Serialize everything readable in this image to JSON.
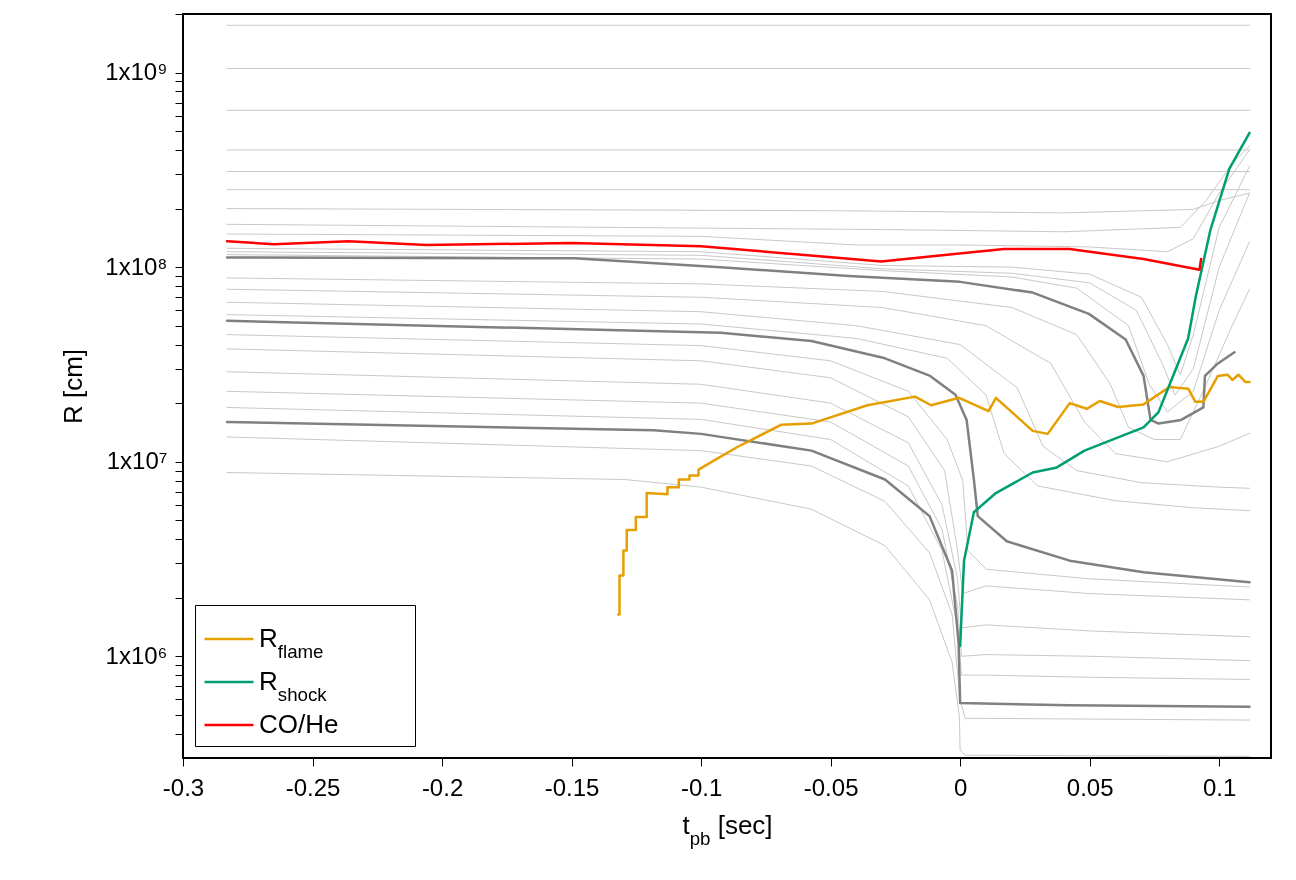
{
  "chart_data": {
    "type": "line",
    "xlabel": "t$_{pb}$ [sec]",
    "ylabel": "R [cm]",
    "log": "y",
    "grid": false,
    "legend": "bottom left",
    "xlim": [
      -0.3,
      0.12
    ],
    "xticks": [
      -0.3,
      -0.25,
      -0.2,
      -0.15,
      -0.1,
      -0.05,
      0,
      0.05,
      0.1
    ],
    "ylim": [
      300000.0,
      2000000000.0
    ],
    "yticks": [
      {
        "value": 400000.0,
        "label": null
      },
      {
        "value": 500000.0,
        "label": null
      },
      {
        "value": 600000.0,
        "label": null
      },
      {
        "value": 700000.0,
        "label": null
      },
      {
        "value": 800000.0,
        "label": null
      },
      {
        "value": 900000.0,
        "label": null
      },
      {
        "value": 1000000.0,
        "label": "1x10⁶"
      },
      {
        "value": 2000000.0,
        "label": null
      },
      {
        "value": 3000000.0,
        "label": null
      },
      {
        "value": 4000000.0,
        "label": null
      },
      {
        "value": 5000000.0,
        "label": null
      },
      {
        "value": 6000000.0,
        "label": null
      },
      {
        "value": 7000000.0,
        "label": null
      },
      {
        "value": 8000000.0,
        "label": null
      },
      {
        "value": 9000000.0,
        "label": null
      },
      {
        "value": 10000000.0,
        "label": "1x10⁷"
      },
      {
        "value": 20000000.0,
        "label": null
      },
      {
        "value": 30000000.0,
        "label": null
      },
      {
        "value": 40000000.0,
        "label": null
      },
      {
        "value": 50000000.0,
        "label": null
      },
      {
        "value": 60000000.0,
        "label": null
      },
      {
        "value": 70000000.0,
        "label": null
      },
      {
        "value": 80000000.0,
        "label": null
      },
      {
        "value": 90000000.0,
        "label": null
      },
      {
        "value": 100000000.0,
        "label": "1x10⁸"
      },
      {
        "value": 200000000.0,
        "label": null
      },
      {
        "value": 300000000.0,
        "label": null
      },
      {
        "value": 400000000.0,
        "label": null
      },
      {
        "value": 500000000.0,
        "label": null
      },
      {
        "value": 600000000.0,
        "label": null
      },
      {
        "value": 700000000.0,
        "label": null
      },
      {
        "value": 800000000.0,
        "label": null
      },
      {
        "value": 900000000.0,
        "label": null
      },
      {
        "value": 1000000000.0,
        "label": "1x10⁹"
      },
      {
        "value": 2000000000.0,
        "label": null
      }
    ],
    "series": [
      {
        "color": "#c8c8c8",
        "x": [
          -0.283,
          0.1117
        ],
        "values": [
          1750000000.0,
          1750000000.0
        ]
      },
      {
        "color": "#c8c8c8",
        "x": [
          -0.283,
          0.1117
        ],
        "values": [
          1050000000.0,
          1050000000.0
        ]
      },
      {
        "color": "#c8c8c8",
        "x": [
          -0.283,
          0.1117
        ],
        "values": [
          640000000.0,
          640000000.0
        ]
      },
      {
        "color": "#c8c8c8",
        "x": [
          -0.283,
          0.1117
        ],
        "values": [
          400000000.0,
          400000000.0
        ]
      },
      {
        "color": "#c8c8c8",
        "x": [
          -0.283,
          0.1117
        ],
        "values": [
          310000000.0,
          310000000.0
        ]
      },
      {
        "color": "#c8c8c8",
        "x": [
          -0.283,
          0.1117
        ],
        "values": [
          250000000.0,
          250000000.0
        ]
      },
      {
        "color": "#c8c8c8",
        "x": [
          -0.283,
          -0.05,
          0.04,
          0.09,
          0.1,
          0.1117
        ],
        "values": [
          200000000.0,
          195000000.0,
          190000000.0,
          198000000.0,
          220000000.0,
          240000000.0
        ]
      },
      {
        "color": "#c8c8c8",
        "x": [
          -0.283,
          -0.03,
          0.04,
          0.085,
          0.095,
          0.105,
          0.1117
        ],
        "values": [
          166000000.0,
          156000000.0,
          152000000.0,
          160000000.0,
          220000000.0,
          340000000.0,
          420000000.0
        ]
      },
      {
        "color": "#c8c8c8",
        "x": [
          -0.283,
          -0.1,
          -0.04,
          0,
          0.05,
          0.08,
          0.09,
          0.1,
          0.1117
        ],
        "values": [
          148000000.0,
          144000000.0,
          130000000.0,
          130000000.0,
          127000000.0,
          120000000.0,
          140000000.0,
          240000000.0,
          400000000.0
        ]
      },
      {
        "color": "#c8c8c8",
        "x": [
          -0.283,
          -0.1,
          -0.03,
          0.02,
          0.05,
          0.07,
          0.08,
          0.085,
          0.09,
          0.1,
          0.1117
        ],
        "values": [
          125000000.0,
          120000000.0,
          102000000.0,
          100000000.0,
          92000000.0,
          70000000.0,
          40000000.0,
          28000000.0,
          45000000.0,
          160000000.0,
          330000000.0
        ]
      },
      {
        "color": "#c8c8c8",
        "x": [
          -0.283,
          -0.1,
          -0.03,
          0.02,
          0.05,
          0.068,
          0.078,
          0.083,
          0.09,
          0.1,
          0.1117
        ],
        "values": [
          120000000.0,
          115000000.0,
          98000000.0,
          93000000.0,
          83000000.0,
          60000000.0,
          32000000.0,
          22000000.0,
          30000000.0,
          100000000.0,
          240000000.0
        ]
      },
      {
        "color": "#c8c8c8",
        "x": [
          -0.283,
          -0.1,
          -0.03,
          0.02,
          0.045,
          0.065,
          0.073,
          0.08,
          0.09,
          0.1,
          0.1117
        ],
        "values": [
          116000000.0,
          110000000.0,
          96000000.0,
          89000000.0,
          78000000.0,
          50000000.0,
          25000000.0,
          18000000.0,
          23000000.0,
          60000000.0,
          135000000.0
        ]
      },
      {
        "color": "#c8c8c8",
        "x": [
          -0.283,
          -0.1,
          -0.03,
          0.02,
          0.045,
          0.058,
          0.065,
          0.075,
          0.085,
          0.095,
          0.105,
          0.1117
        ],
        "values": [
          88000000.0,
          82000000.0,
          75000000.0,
          62000000.0,
          45000000.0,
          25000000.0,
          15000000.0,
          13000000.0,
          13000000.0,
          25000000.0,
          50000000.0,
          77000000.0
        ]
      },
      {
        "color": "#c8c8c8",
        "x": [
          -0.283,
          -0.1,
          -0.03,
          0.01,
          0.035,
          0.048,
          0.06,
          0.08,
          0.1,
          0.1117
        ],
        "values": [
          77000000.0,
          70000000.0,
          62000000.0,
          50000000.0,
          32000000.0,
          16000000.0,
          11000000.0,
          10000000.0,
          12000000.0,
          14000000.0
        ]
      },
      {
        "color": "#c8c8c8",
        "x": [
          -0.283,
          -0.1,
          -0.04,
          0,
          0.022,
          0.032,
          0.045,
          0.07,
          0.1,
          0.1117
        ],
        "values": [
          66000000.0,
          59000000.0,
          50000000.0,
          40000000.0,
          24000000.0,
          12000000.0,
          9000000.0,
          7800000.0,
          7400000.0,
          7300000.0
        ]
      },
      {
        "color": "#c8c8c8",
        "x": [
          -0.283,
          -0.1,
          -0.04,
          -0.005,
          0.01,
          0.017,
          0.03,
          0.06,
          0.09,
          0.1117
        ],
        "values": [
          57000000.0,
          51000000.0,
          43000000.0,
          34000000.0,
          22000000.0,
          11000000.0,
          7500000.0,
          6300000.0,
          5800000.0,
          5600000.0
        ]
      },
      {
        "color": "#c8c8c8",
        "x": [
          -0.283,
          -0.1,
          -0.05,
          -0.02,
          -0.005,
          0.001,
          0.003,
          0.01,
          0.05,
          0.1117
        ],
        "values": [
          45000000.0,
          39500000.0,
          33000000.0,
          23000000.0,
          13000000.0,
          8000000.0,
          3500000.0,
          2800000.0,
          2500000.0,
          2270000.0
        ]
      },
      {
        "color": "#c8c8c8",
        "x": [
          -0.283,
          -0.1,
          -0.05,
          -0.02,
          -0.006,
          -0.001,
          0.001,
          0.01,
          0.05,
          0.1117
        ],
        "values": [
          38000000.0,
          33000000.0,
          27000000.0,
          17000000.0,
          9000000.0,
          3500000.0,
          2100000.0,
          2300000.0,
          2100000.0,
          1950000.0
        ]
      },
      {
        "color": "#c8c8c8",
        "x": [
          -0.283,
          -0.1,
          -0.05,
          -0.02,
          -0.007,
          -0.001,
          0.0005,
          0.01,
          0.05,
          0.1117
        ],
        "values": [
          29000000.0,
          25000000.0,
          20000000.0,
          12500000.0,
          6000000.0,
          2500000.0,
          1400000.0,
          1450000.0,
          1350000.0,
          1260000.0
        ]
      },
      {
        "color": "#c8c8c8",
        "x": [
          -0.283,
          -0.1,
          -0.05,
          -0.02,
          -0.007,
          -0.001,
          0.0005,
          0.01,
          0.05,
          0.1117
        ],
        "values": [
          23000000.0,
          20000000.0,
          16000000.0,
          9500000.0,
          4500000.0,
          1800000.0,
          1000000.0,
          1020000.0,
          1000000.0,
          950000.0
        ]
      },
      {
        "color": "#c8c8c8",
        "x": [
          -0.283,
          -0.1,
          -0.05,
          -0.02,
          -0.007,
          -0.001,
          0.0005,
          0.01,
          0.05,
          0.1117
        ],
        "values": [
          19000000.0,
          16500000.0,
          13000000.0,
          7500000.0,
          3500000.0,
          1400000.0,
          800000.0,
          800000.0,
          780000.0,
          760000.0
        ]
      },
      {
        "color": "#c8c8c8",
        "x": [
          -0.283,
          -0.1,
          -0.0574,
          -0.029,
          -0.0118,
          -0.0031,
          0,
          0.002,
          0.1117
        ],
        "values": [
          13400000.0,
          11400000.0,
          9500000.0,
          6250000.0,
          3400000.0,
          1640000.0,
          590000.0,
          480000.0,
          470000.0
        ]
      },
      {
        "color": "#c8c8c8",
        "x": [
          -0.283,
          -0.1294,
          -0.1,
          -0.0574,
          -0.029,
          -0.0118,
          -0.0031,
          -0.0003,
          0,
          0.002,
          0.1117
        ],
        "values": [
          8800000.0,
          8100000.0,
          7400000.0,
          5700000.0,
          3700000.0,
          1950000.0,
          930000.0,
          490000.0,
          330000.0,
          310000.0,
          306000.0
        ]
      },
      {
        "color": "#808080",
        "x": [
          -0.283,
          -0.149,
          -0.0925,
          -0.043,
          0,
          0.028,
          0.0497,
          0.0639,
          0.0708,
          0.0735,
          0.0766,
          0.0853,
          0.0939,
          0.0945,
          0.0995,
          0.1059
        ],
        "values": [
          112000000.0,
          111000000.0,
          100000000.0,
          90000000.0,
          84000000.0,
          74000000.0,
          57500000.0,
          42500000.0,
          27600000.0,
          16400000.0,
          15700000.0,
          16400000.0,
          19000000.0,
          27600000.0,
          32000000.0,
          36500000.0
        ]
      },
      {
        "color": "#808080",
        "x": [
          -0.283,
          -0.0925,
          -0.0574,
          -0.029,
          -0.0116,
          -0.0018,
          0.0025,
          0.0053,
          0.0068,
          0.018,
          0.0423,
          0.0708,
          0.1117
        ],
        "values": [
          53000000.0,
          46000000.0,
          41700000.0,
          34000000.0,
          27600000.0,
          22100000.0,
          16400000.0,
          8100000.0,
          5250000.0,
          3900000.0,
          3100000.0,
          2700000.0,
          2400000.0
        ]
      },
      {
        "color": "#808080",
        "x": [
          -0.283,
          -0.1183,
          -0.1,
          -0.0574,
          -0.029,
          -0.0118,
          -0.0031,
          -0.0006,
          0,
          0.0423,
          0.1117
        ],
        "values": [
          16000000.0,
          14500000.0,
          13900000.0,
          11400000.0,
          8100000.0,
          5250000.0,
          2750000.0,
          1170000.0,
          575000.0,
          560000.0,
          550000.0
        ]
      },
      {
        "name": "R$_{flame}$",
        "color": "#e69f00",
        "x": [
          -0.132,
          -0.1315,
          -0.1315,
          -0.13,
          -0.13,
          -0.1287,
          -0.1287,
          -0.1252,
          -0.1252,
          -0.121,
          -0.121,
          -0.113,
          -0.113,
          -0.1086,
          -0.1086,
          -0.1045,
          -0.1045,
          -0.101,
          -0.101,
          -0.0936,
          -0.086,
          -0.069,
          -0.0574,
          -0.0358,
          -0.0174,
          -0.0112,
          -0.0004,
          0.011,
          0.0138,
          0.028,
          0.0338,
          0.0423,
          0.0489,
          0.0539,
          0.061,
          0.0708,
          0.0808,
          0.0881,
          0.0908,
          0.0939,
          0.0995,
          0.1032,
          0.1051,
          0.1074,
          0.1101,
          0.1117
        ],
        "values": [
          1640000.0,
          1640000.0,
          2600000.0,
          2600000.0,
          3500000.0,
          3500000.0,
          4450000.0,
          4450000.0,
          5200000.0,
          5200000.0,
          6900000.0,
          6800000.0,
          7400000.0,
          7400000.0,
          8100000.0,
          8100000.0,
          8500000.0,
          8500000.0,
          9100000.0,
          10400000.0,
          11900000.0,
          15500000.0,
          15700000.0,
          19500000.0,
          21600000.0,
          19500000.0,
          21300000.0,
          18200000.0,
          21300000.0,
          14400000.0,
          13900000.0,
          20000000.0,
          18700000.0,
          20500000.0,
          19100000.0,
          19700000.0,
          24200000.0,
          23700000.0,
          20300000.0,
          20300000.0,
          27600000.0,
          28000000.0,
          26300000.0,
          28000000.0,
          25700000.0,
          25700000.0
        ]
      },
      {
        "name": "R$_{shock}$",
        "color": "#009e73",
        "x": [
          0,
          0.0015,
          0.0053,
          0.0138,
          0.028,
          0.037,
          0.048,
          0.0708,
          0.0766,
          0.088,
          0.091,
          0.0966,
          0.1039,
          0.1117
        ],
        "values": [
          1130000.0,
          3100000.0,
          5500000.0,
          6900000.0,
          8800000.0,
          9300000.0,
          11400000.0,
          15000000.0,
          18000000.0,
          43000000.0,
          71000000.0,
          155000000.0,
          320000000.0,
          490000000.0
        ]
      },
      {
        "name": "CO/He",
        "color": "#ff0000",
        "x": [
          -0.283,
          -0.265,
          -0.236,
          -0.206,
          -0.15,
          -0.1,
          -0.0305,
          0.017,
          0.0423,
          0.0708,
          0.0924,
          0.093
        ],
        "values": [
          136000000.0,
          131000000.0,
          136000000.0,
          130000000.0,
          133000000.0,
          128000000.0,
          107000000.0,
          124000000.0,
          124000000.0,
          110000000.0,
          97000000.0,
          110000000.0
        ]
      }
    ]
  }
}
